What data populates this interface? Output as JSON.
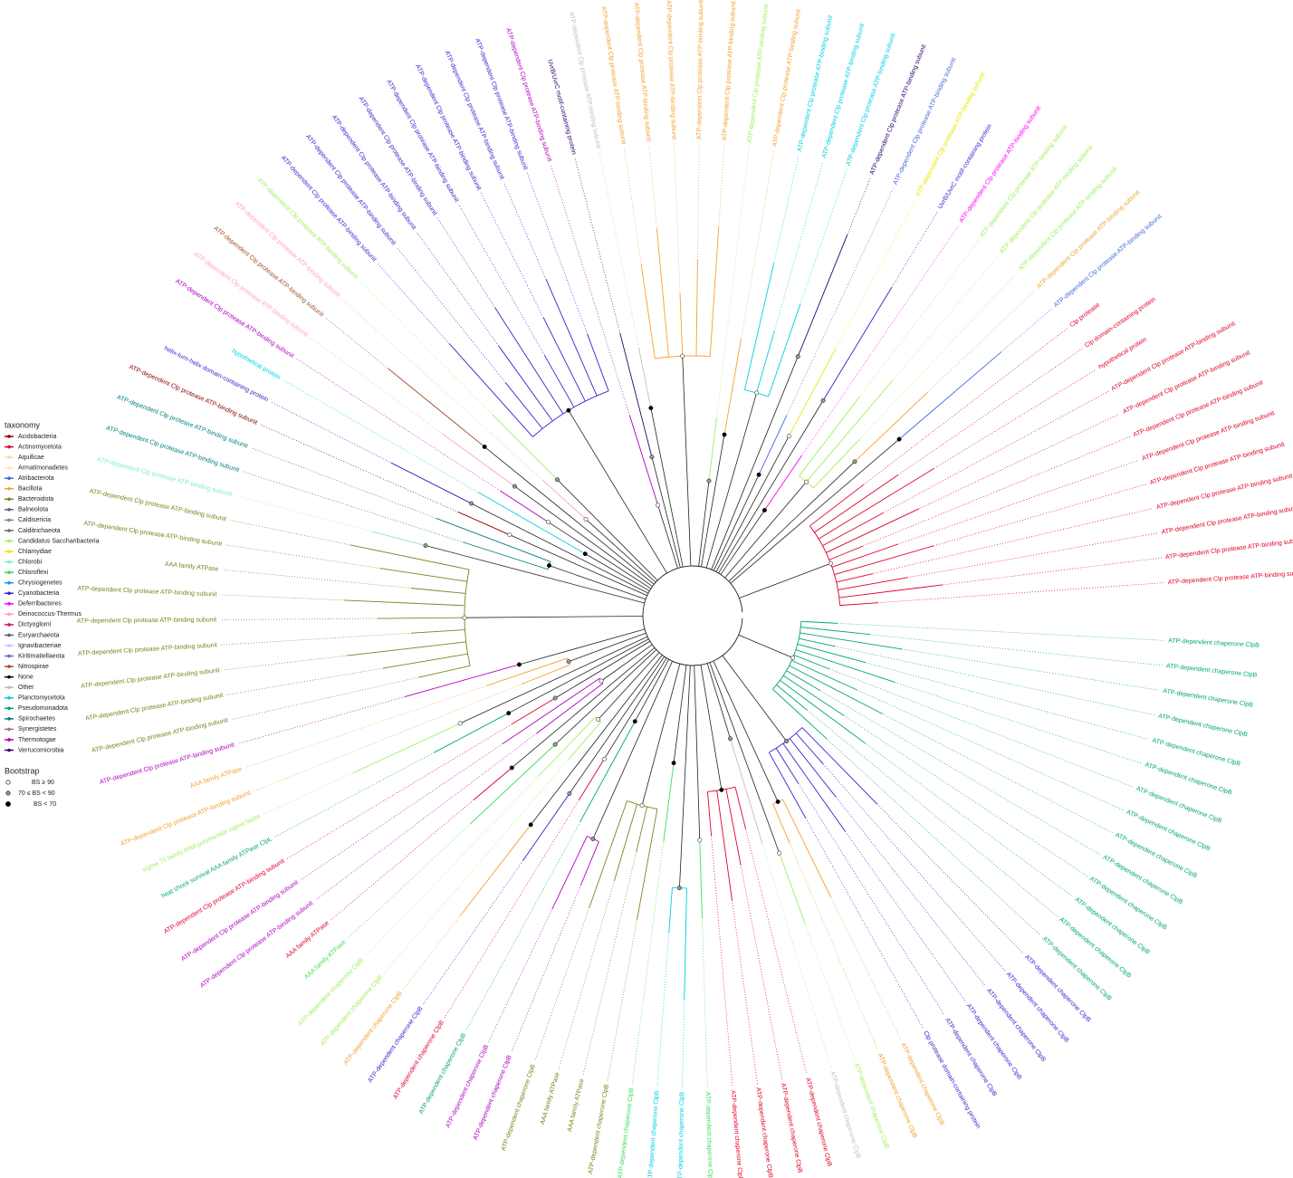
{
  "legend": {
    "title": "taxonomy",
    "items": [
      {
        "label": "Acidobacteria",
        "color": "#8b0000"
      },
      {
        "label": "Actinomycetota",
        "color": "#e0002a"
      },
      {
        "label": "Aquificae",
        "color": "#f5deb3"
      },
      {
        "label": "Armatimonadetes",
        "color": "#ffe4c4"
      },
      {
        "label": "Atribacterota",
        "color": "#4169e1"
      },
      {
        "label": "Bacillota",
        "color": "#f5a030"
      },
      {
        "label": "Bacteroidota",
        "color": "#808020"
      },
      {
        "label": "Balneolota",
        "color": "#666666"
      },
      {
        "label": "Caldisericia",
        "color": "#888888"
      },
      {
        "label": "Calditrichaeota",
        "color": "#707070"
      },
      {
        "label": "Candidatus Saccharibacteria",
        "color": "#a0f060"
      },
      {
        "label": "Chlamydiae",
        "color": "#e8e800"
      },
      {
        "label": "Chlorobi",
        "color": "#80f0c0"
      },
      {
        "label": "Chloroflexi",
        "color": "#3ddc5a"
      },
      {
        "label": "Chrysiogenetes",
        "color": "#1e90ff"
      },
      {
        "label": "Cyanobacteria",
        "color": "#3a1fd0"
      },
      {
        "label": "Deferribacteres",
        "color": "#ff00ff"
      },
      {
        "label": "Deinococcus-Thermus",
        "color": "#ffa0d0"
      },
      {
        "label": "Dictyoglomi",
        "color": "#c0206a"
      },
      {
        "label": "Euryarchaeota",
        "color": "#556677"
      },
      {
        "label": "Ignavibacteriae",
        "color": "#d0c0ff"
      },
      {
        "label": "Kiritimatiellaeota",
        "color": "#6a6acd"
      },
      {
        "label": "Nitrospirae",
        "color": "#a0522d"
      },
      {
        "label": "None",
        "color": "#000000"
      },
      {
        "label": "Other",
        "color": "#c0c0c0"
      },
      {
        "label": "Planctomycetota",
        "color": "#00d0e0"
      },
      {
        "label": "Pseudomonadota",
        "color": "#00a86b"
      },
      {
        "label": "Spirochaetes",
        "color": "#008080"
      },
      {
        "label": "Synergistetes",
        "color": "#a07090"
      },
      {
        "label": "Thermotogae",
        "color": "#b000c0"
      },
      {
        "label": "Verrucomicrobia",
        "color": "#300070"
      }
    ]
  },
  "bootstrap": {
    "title": "Bootstrap",
    "items": [
      "BS ≥ 90",
      "70 ≤ BS < 90",
      "BS < 70"
    ]
  },
  "tree": {
    "leaves": [
      {
        "label": "ATP-dependent chaperone ClpB",
        "color": "#00a86b"
      },
      {
        "label": "ATP-dependent chaperone ClpB",
        "color": "#00a86b"
      },
      {
        "label": "ATP-dependent chaperone ClpB",
        "color": "#00a86b"
      },
      {
        "label": "ATP-dependent chaperone ClpB",
        "color": "#00a86b"
      },
      {
        "label": "ATP-dependent chaperone ClpB",
        "color": "#00a86b"
      },
      {
        "label": "ATP-dependent chaperone ClpB",
        "color": "#00a86b"
      },
      {
        "label": "ATP-dependent chaperone ClpB",
        "color": "#00a86b"
      },
      {
        "label": "ATP-dependent chaperone ClpB",
        "color": "#00a86b"
      },
      {
        "label": "ATP-dependent chaperone ClpB",
        "color": "#00a86b"
      },
      {
        "label": "ATP-dependent chaperone ClpB",
        "color": "#00a86b"
      },
      {
        "label": "ATP-dependent chaperone ClpB",
        "color": "#00a86b"
      },
      {
        "label": "ATP-dependent chaperone ClpB",
        "color": "#00a86b"
      },
      {
        "label": "ATP-dependent chaperone ClpB",
        "color": "#00a86b"
      },
      {
        "label": "ATP-dependent chaperone ClpB",
        "color": "#00a86b"
      },
      {
        "label": "ATP-dependent chaperone ClpB",
        "color": "#3a1fd0"
      },
      {
        "label": "ATP-dependent chaperone ClpB",
        "color": "#3a1fd0"
      },
      {
        "label": "ATP-dependent chaperone ClpB",
        "color": "#3a1fd0"
      },
      {
        "label": "ATP-dependent chaperone ClpB",
        "color": "#3a1fd0"
      },
      {
        "label": "ATP-dependent chaperone ClpB",
        "color": "#3a1fd0"
      },
      {
        "label": "Clp protease domain-containing protein",
        "color": "#3a1fd0"
      },
      {
        "label": "ATP-dependent chaperone ClpB",
        "color": "#f5a030"
      },
      {
        "label": "ATP-dependent chaperone ClpB",
        "color": "#f5a030"
      },
      {
        "label": "ATP-dependent chaperone ClpB",
        "color": "#a0f060"
      },
      {
        "label": "ATP-dependent chaperone ClpB",
        "color": "#c0c0c0"
      },
      {
        "label": "ATP-dependent chaperone ClpB",
        "color": "#e0002a"
      },
      {
        "label": "ATP-dependent chaperone ClpB",
        "color": "#e0002a"
      },
      {
        "label": "ATP-dependent chaperone ClpB",
        "color": "#e0002a"
      },
      {
        "label": "ATP-dependent chaperone ClpB",
        "color": "#e0002a"
      },
      {
        "label": "ATP-dependent chaperone ClpB",
        "color": "#3ddc5a"
      },
      {
        "label": "ATP-dependent chaperone ClpB",
        "color": "#00d0e0"
      },
      {
        "label": "ATP-dependent chaperone ClpB",
        "color": "#00d0e0"
      },
      {
        "label": "ATP-dependent chaperone ClpB",
        "color": "#3ddc5a"
      },
      {
        "label": "ATP-dependent chaperone ClpB",
        "color": "#808020"
      },
      {
        "label": "AAA family ATPase",
        "color": "#808020"
      },
      {
        "label": "AAA family ATPase",
        "color": "#808020"
      },
      {
        "label": "ATP-dependent chaperone ClpB",
        "color": "#808020"
      },
      {
        "label": "ATP-dependent chaperone ClpB",
        "color": "#b000c0"
      },
      {
        "label": "ATP-dependent chaperone ClpB",
        "color": "#b000c0"
      },
      {
        "label": "ATP-dependent chaperone ClpB",
        "color": "#00a86b"
      },
      {
        "label": "ATP-dependent chaperone ClpB",
        "color": "#e0002a"
      },
      {
        "label": "ATP-dependent chaperone ClpB",
        "color": "#3a1fd0"
      },
      {
        "label": "ATP-dependent chaperone ClpB",
        "color": "#f5a030"
      },
      {
        "label": "ATP-dependent chaperone ClpB",
        "color": "#a0f060"
      },
      {
        "label": "ATP-dependent chaperone ClpB",
        "color": "#a0f060"
      },
      {
        "label": "AAA family ATPase",
        "color": "#3ddc5a"
      },
      {
        "label": "AAA family ATPase",
        "color": "#e0002a"
      },
      {
        "label": "ATP-dependent Clp protease ATP-binding subunit",
        "color": "#b000c0"
      },
      {
        "label": "ATP-dependent Clp protease ATP-binding subunit",
        "color": "#b000c0"
      },
      {
        "label": "ATP-dependent Clp protease ATP-binding subunit",
        "color": "#e0002a"
      },
      {
        "label": "heat shock survival AAA family ATPase ClpL",
        "color": "#00a86b"
      },
      {
        "label": "sigma 70 family RNA polymerase sigma factor",
        "color": "#a0f060"
      },
      {
        "label": "ATP-dependent Clp protease ATP-binding subunit",
        "color": "#f5a030"
      },
      {
        "label": "AAA family ATPase",
        "color": "#f5a030"
      },
      {
        "label": "ATP-dependent Clp protease ATP-binding subunit",
        "color": "#b000c0"
      },
      {
        "label": "ATP-dependent Clp protease ATP-binding subunit",
        "color": "#808020"
      },
      {
        "label": "ATP-dependent Clp protease ATP-binding subunit",
        "color": "#808020"
      },
      {
        "label": "ATP-dependent Clp protease ATP-binding subunit",
        "color": "#808020"
      },
      {
        "label": "ATP-dependent Clp protease ATP-binding subunit",
        "color": "#808020"
      },
      {
        "label": "ATP-dependent Clp protease ATP-binding subunit",
        "color": "#808020"
      },
      {
        "label": "ATP-dependent Clp protease ATP-binding subunit",
        "color": "#808020"
      },
      {
        "label": "AAA family ATPase",
        "color": "#808020"
      },
      {
        "label": "ATP-dependent Clp protease ATP-binding subunit",
        "color": "#808020"
      },
      {
        "label": "ATP-dependent Clp protease ATP-binding subunit",
        "color": "#808020"
      },
      {
        "label": "ATP-dependent Clp protease ATP-binding subunit",
        "color": "#80f0c0"
      },
      {
        "label": "ATP-dependent Clp protease ATP-binding subunit",
        "color": "#008080"
      },
      {
        "label": "ATP-dependent Clp protease ATP-binding subunit",
        "color": "#008080"
      },
      {
        "label": "ATP-dependent Clp protease ATP-binding subunit",
        "color": "#8b0000"
      },
      {
        "label": "helix-turn-helix domain-containing protein",
        "color": "#3a1fd0"
      },
      {
        "label": "hypothetical protein",
        "color": "#00d0e0"
      },
      {
        "label": "ATP-dependent Clp protease ATP-binding subunit",
        "color": "#b000c0"
      },
      {
        "label": "ATP-dependent Clp protease ATP-binding subunit",
        "color": "#ffa0d0"
      },
      {
        "label": "ATP-dependent Clp protease ATP-binding subunit",
        "color": "#a0522d"
      },
      {
        "label": "ATP-dependent Clp protease ATP-binding subunit",
        "color": "#ffa0d0"
      },
      {
        "label": "ATP-dependent Clp protease ATP-binding subunit",
        "color": "#a0f060"
      },
      {
        "label": "ATP-dependent Clp protease ATP-binding subunit",
        "color": "#3a1fd0"
      },
      {
        "label": "ATP-dependent Clp protease ATP-binding subunit",
        "color": "#3a1fd0"
      },
      {
        "label": "ATP-dependent Clp protease ATP-binding subunit",
        "color": "#3a1fd0"
      },
      {
        "label": "ATP-dependent Clp protease ATP-binding subunit",
        "color": "#3a1fd0"
      },
      {
        "label": "ATP-dependent Clp protease ATP-binding subunit",
        "color": "#3a1fd0"
      },
      {
        "label": "ATP-dependent Clp protease ATP-binding subunit",
        "color": "#3a1fd0"
      },
      {
        "label": "ATP-dependent Clp protease ATP-binding subunit",
        "color": "#3a1fd0"
      },
      {
        "label": "ATP-dependent Clp protease ATP-binding subunit",
        "color": "#3a1fd0"
      },
      {
        "label": "ATP-dependent Clp protease ATP-binding subunit",
        "color": "#b000c0"
      },
      {
        "label": "UvrB/UvrC motif-containing protein",
        "color": "#300070"
      },
      {
        "label": "ATP-dependent Clp protease ATP-binding subunit",
        "color": "#c0c0c0"
      },
      {
        "label": "ATP-dependent Clp protease ATP-binding subunit",
        "color": "#f5a030"
      },
      {
        "label": "ATP-dependent Clp protease ATP-binding subunit",
        "color": "#f5a030"
      },
      {
        "label": "ATP-dependent Clp protease ATP-binding subunit",
        "color": "#f5a030"
      },
      {
        "label": "ATP-dependent Clp protease ATP-binding subunit",
        "color": "#f5a030"
      },
      {
        "label": "ATP-dependent Clp protease ATP-binding subunit",
        "color": "#f5a030"
      },
      {
        "label": "ATP-dependent Clp protease ATP-binding subunit",
        "color": "#a0f060"
      },
      {
        "label": "ATP-dependent Clp protease ATP-binding subunit",
        "color": "#f5a030"
      },
      {
        "label": "ATP-dependent Clp protease ATP-binding subunit",
        "color": "#00d0e0"
      },
      {
        "label": "ATP-dependent Clp protease ATP-binding subunit",
        "color": "#00d0e0"
      },
      {
        "label": "ATP-dependent Clp protease ATP-binding subunit",
        "color": "#00d0e0"
      },
      {
        "label": "ATP-dependent Clp protease ATP-binding subunit",
        "color": "#300070"
      },
      {
        "label": "ATP-dependent Clp protease ATP-binding subunit",
        "color": "#4169e1"
      },
      {
        "label": "ATP-dependent Clp protease ATP-binding subunit",
        "color": "#e8e800"
      },
      {
        "label": "UvrB/UvrC motif-containing protein",
        "color": "#3a1fd0"
      },
      {
        "label": "ATP-dependent Clp protease ATP-binding subunit",
        "color": "#ff00ff"
      },
      {
        "label": "ATP-dependent Clp protease ATP-binding subunit",
        "color": "#a0f060"
      },
      {
        "label": "ATP-dependent Clp protease ATP-binding subunit",
        "color": "#a0f060"
      },
      {
        "label": "ATP-dependent Clp protease ATP-binding subunit",
        "color": "#a0f060"
      },
      {
        "label": "ATP-dependent Clp protease ATP-binding subunit",
        "color": "#f5a030"
      },
      {
        "label": "ATP-dependent Clp protease ATP-binding subunit",
        "color": "#4169e1"
      },
      {
        "label": "Clp protease",
        "color": "#e0002a"
      },
      {
        "label": "Clp domain-containing protein",
        "color": "#e0002a"
      },
      {
        "label": "hypothetical protein",
        "color": "#e0002a"
      },
      {
        "label": "ATP-dependent Clp protease ATP-binding subunit",
        "color": "#e0002a"
      },
      {
        "label": "ATP-dependent Clp protease ATP-binding subunit",
        "color": "#e0002a"
      },
      {
        "label": "ATP-dependent Clp protease ATP-binding subunit",
        "color": "#e0002a"
      },
      {
        "label": "ATP-dependent Clp protease ATP-binding subunit",
        "color": "#e0002a"
      },
      {
        "label": "ATP-dependent Clp protease ATP-binding subunit",
        "color": "#e0002a"
      },
      {
        "label": "ATP-dependent Clp protease ATP-binding subunit",
        "color": "#e0002a"
      },
      {
        "label": "ATP-dependent Clp protease ATP-binding subunit",
        "color": "#e0002a"
      },
      {
        "label": "ATP-dependent Clp protease ATP-binding subunit",
        "color": "#e0002a"
      },
      {
        "label": "ATP-dependent Clp protease ATP-binding subunit",
        "color": "#e0002a"
      }
    ]
  }
}
